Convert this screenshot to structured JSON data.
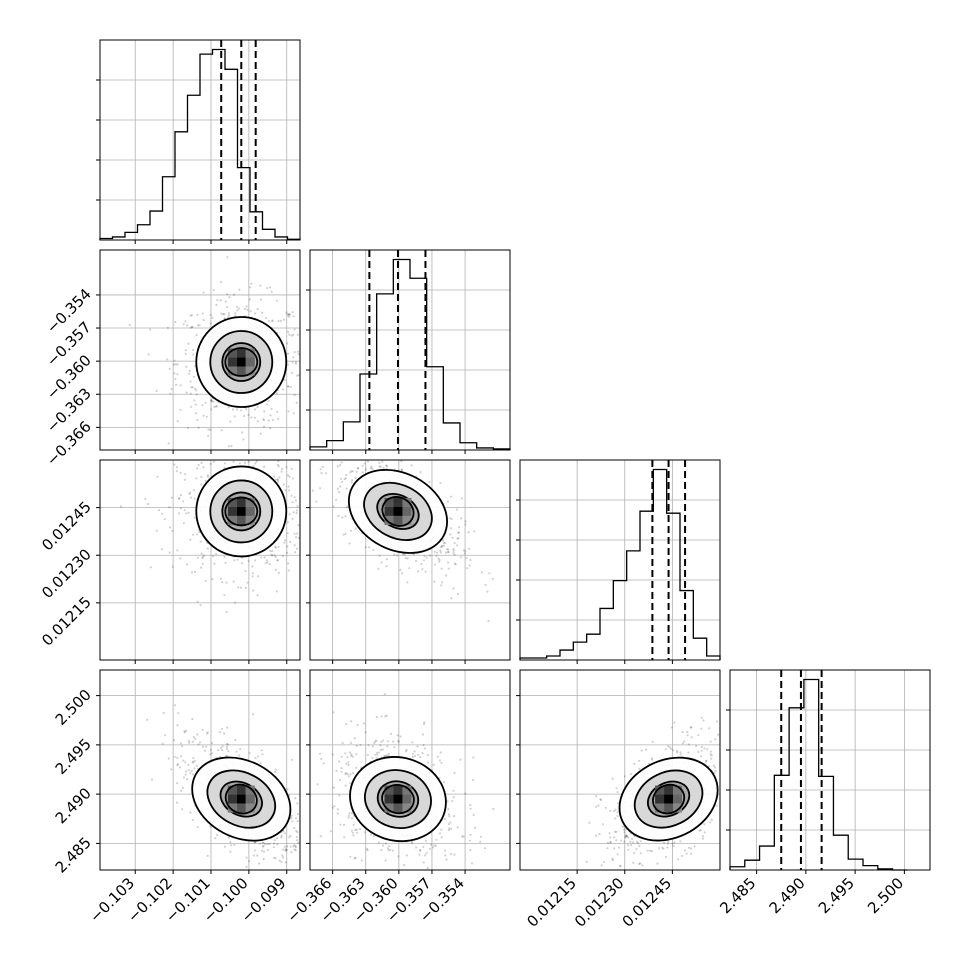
{
  "chart_data": [
    {
      "type": "histogram",
      "param": "p0",
      "bins": [
        -0.10393,
        -0.1036,
        -0.10327,
        -0.10294,
        -0.10261,
        -0.10228,
        -0.10195,
        -0.10162,
        -0.10129,
        -0.10096,
        -0.10063,
        -0.1003,
        -0.09997,
        -0.09964,
        -0.09931,
        -0.09898,
        -0.09865
      ],
      "counts": [
        2,
        4,
        10,
        20,
        38,
        83,
        142,
        190,
        244,
        250,
        224,
        95,
        37,
        14,
        4,
        1
      ],
      "quantiles": [
        -0.10073,
        -0.1002,
        -0.09982
      ],
      "xlim": [
        -0.10393,
        -0.09865
      ]
    },
    {
      "type": "histogram",
      "param": "p1",
      "bins": [
        -0.36805,
        -0.36654,
        -0.36503,
        -0.36352,
        -0.36201,
        -0.3605,
        -0.35899,
        -0.35748,
        -0.35597,
        -0.35446,
        -0.35295,
        -0.35144,
        -0.34993
      ],
      "counts": [
        3,
        9,
        27,
        73,
        150,
        183,
        165,
        80,
        26,
        7,
        2,
        1
      ],
      "quantiles": [
        -0.36267,
        -0.36008,
        -0.35759
      ],
      "xlim": [
        -0.36805,
        -0.34993
      ]
    },
    {
      "type": "histogram",
      "param": "p2",
      "bins": [
        0.01197,
        0.012012,
        0.012054,
        0.012096,
        0.012138,
        0.01218,
        0.012222,
        0.012264,
        0.012306,
        0.012348,
        0.01239,
        0.012432,
        0.012474,
        0.012516,
        0.012558,
        0.0126
      ],
      "counts": [
        1,
        1,
        2,
        5,
        9,
        13,
        26,
        40,
        55,
        75,
        96,
        74,
        35,
        11,
        2
      ],
      "quantiles": [
        0.012387,
        0.012438,
        0.01249
      ],
      "xlim": [
        0.01197,
        0.0126
      ]
    },
    {
      "type": "histogram",
      "param": "p3",
      "bins": [
        2.4823,
        2.4838,
        2.4853,
        2.4868,
        2.4883,
        2.4898,
        2.4913,
        2.4928,
        2.4943,
        2.4958,
        2.4973,
        2.4988,
        2.5003
      ],
      "counts": [
        3,
        9,
        22,
        87,
        149,
        175,
        86,
        32,
        10,
        4,
        1,
        0
      ],
      "quantiles": [
        2.4875,
        2.4895,
        2.4916
      ],
      "xlim": [
        2.4823,
        2.5026
      ]
    },
    {
      "type": "contour",
      "params": [
        "p0",
        "p1"
      ],
      "center": [
        -0.1002,
        -0.36008
      ],
      "tilt": "none"
    },
    {
      "type": "contour",
      "params": [
        "p0",
        "p2"
      ],
      "center": [
        -0.1002,
        0.012438
      ],
      "tilt": "none"
    },
    {
      "type": "contour",
      "params": [
        "p1",
        "p2"
      ],
      "center": [
        -0.36008,
        0.012438
      ],
      "tilt": "negative"
    },
    {
      "type": "contour",
      "params": [
        "p0",
        "p3"
      ],
      "center": [
        -0.1002,
        2.4895
      ],
      "tilt": "negative"
    },
    {
      "type": "contour",
      "params": [
        "p1",
        "p3"
      ],
      "center": [
        -0.36008,
        2.4895
      ],
      "tilt": "slight negative"
    },
    {
      "type": "contour",
      "params": [
        "p2",
        "p3"
      ],
      "center": [
        0.012438,
        2.4895
      ],
      "tilt": "positive"
    }
  ],
  "axes": {
    "p0": {
      "ticks": [
        -0.103,
        -0.102,
        -0.101,
        -0.1,
        -0.099
      ],
      "labels": [
        "−0.103",
        "−0.102",
        "−0.101",
        "−0.100",
        "−0.099"
      ]
    },
    "p1": {
      "ticks": [
        -0.366,
        -0.363,
        -0.36,
        -0.357,
        -0.354
      ],
      "labels": [
        "−0.366",
        "−0.363",
        "−0.360",
        "−0.357",
        "−0.354"
      ]
    },
    "p2": {
      "ticks": [
        0.01215,
        0.0123,
        0.01245
      ],
      "labels": [
        "0.01215",
        "0.01230",
        "0.01245"
      ]
    },
    "p3": {
      "ticks": [
        2.485,
        2.49,
        2.495,
        2.5
      ],
      "labels": [
        "2.485",
        "2.490",
        "2.495",
        "2.500"
      ]
    }
  },
  "grid": true
}
